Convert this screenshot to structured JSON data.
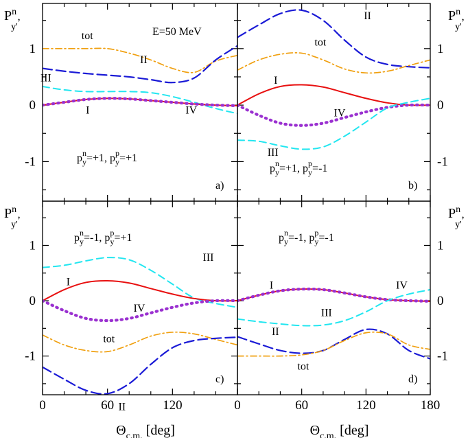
{
  "figure": {
    "x_axis_title": {
      "main": "Θ",
      "sub": "c.m.",
      "unit": " [deg]"
    },
    "y_axis_label": {
      "main": "P",
      "sup": "n",
      "sub": "y'",
      "suffix": ","
    },
    "x_ticks": [
      "0",
      "60",
      "120",
      "180"
    ],
    "y_ticks": [
      "-1",
      "0",
      "1"
    ],
    "energy_label": "E=50 MeV",
    "colors": {
      "tot": "#f0a010",
      "II": "#1a1ad6",
      "III": "#22e6f0",
      "I": "#e81010",
      "IV": "#9a30d0"
    }
  },
  "chart_data": [
    {
      "type": "line",
      "panel": "a",
      "tag": "a)",
      "condition": {
        "n_value": "=+1,  ",
        "p_value": "=+1"
      },
      "xlim": [
        0,
        180
      ],
      "ylim": [
        -1.7,
        1.8
      ],
      "x": [
        0,
        20,
        40,
        60,
        80,
        100,
        120,
        140,
        160,
        180
      ],
      "series": [
        {
          "name": "tot",
          "label": "tot",
          "values": [
            1.0,
            1.0,
            1.0,
            1.0,
            0.92,
            0.8,
            0.65,
            0.58,
            0.78,
            0.88
          ]
        },
        {
          "name": "II",
          "label": "II",
          "values": [
            0.65,
            0.6,
            0.56,
            0.53,
            0.5,
            0.45,
            0.4,
            0.48,
            0.8,
            1.05
          ]
        },
        {
          "name": "III",
          "label": "III",
          "values": [
            0.33,
            0.27,
            0.24,
            0.24,
            0.24,
            0.22,
            0.15,
            0.05,
            -0.06,
            -0.15
          ]
        },
        {
          "name": "I",
          "label": "I",
          "values": [
            0.0,
            0.05,
            0.1,
            0.12,
            0.11,
            0.08,
            0.05,
            0.02,
            0.0,
            -0.01
          ]
        },
        {
          "name": "IV",
          "label": "IV",
          "values": [
            0.0,
            0.05,
            0.1,
            0.12,
            0.11,
            0.08,
            0.05,
            0.02,
            0.0,
            -0.01
          ]
        }
      ]
    },
    {
      "type": "line",
      "panel": "b",
      "tag": "b)",
      "condition": {
        "n_value": "=+1,  ",
        "p_value": "=-1"
      },
      "xlim": [
        0,
        180
      ],
      "ylim": [
        -1.7,
        1.8
      ],
      "x": [
        0,
        20,
        40,
        60,
        80,
        100,
        120,
        140,
        160,
        180
      ],
      "series": [
        {
          "name": "II",
          "label": "II",
          "values": [
            1.2,
            1.42,
            1.62,
            1.68,
            1.5,
            1.15,
            0.85,
            0.72,
            0.68,
            0.66
          ]
        },
        {
          "name": "tot",
          "label": "tot",
          "values": [
            0.62,
            0.8,
            0.9,
            0.92,
            0.8,
            0.64,
            0.57,
            0.6,
            0.7,
            0.8
          ]
        },
        {
          "name": "I",
          "label": "I",
          "values": [
            0.0,
            0.2,
            0.33,
            0.36,
            0.32,
            0.22,
            0.12,
            0.04,
            0.0,
            0.0
          ]
        },
        {
          "name": "IV",
          "label": "IV",
          "values": [
            0.0,
            -0.18,
            -0.32,
            -0.36,
            -0.32,
            -0.22,
            -0.12,
            -0.04,
            0.0,
            0.0
          ]
        },
        {
          "name": "III",
          "label": "III",
          "values": [
            -0.62,
            -0.64,
            -0.72,
            -0.78,
            -0.74,
            -0.55,
            -0.3,
            -0.05,
            0.05,
            0.12
          ]
        }
      ]
    },
    {
      "type": "line",
      "panel": "c",
      "tag": "c)",
      "condition": {
        "n_value": "=-1,  ",
        "p_value": "=+1"
      },
      "xlim": [
        0,
        180
      ],
      "ylim": [
        -1.7,
        1.8
      ],
      "x": [
        0,
        20,
        40,
        60,
        80,
        100,
        120,
        140,
        160,
        180
      ],
      "series": [
        {
          "name": "III",
          "label": "III",
          "values": [
            0.6,
            0.64,
            0.72,
            0.78,
            0.74,
            0.55,
            0.3,
            0.05,
            -0.05,
            -0.12
          ]
        },
        {
          "name": "I",
          "label": "I",
          "values": [
            0.0,
            0.2,
            0.33,
            0.36,
            0.32,
            0.22,
            0.12,
            0.04,
            0.0,
            0.0
          ]
        },
        {
          "name": "IV",
          "label": "IV",
          "values": [
            0.0,
            -0.18,
            -0.32,
            -0.36,
            -0.32,
            -0.22,
            -0.12,
            -0.04,
            0.0,
            0.0
          ]
        },
        {
          "name": "tot",
          "label": "tot",
          "values": [
            -0.62,
            -0.8,
            -0.9,
            -0.92,
            -0.8,
            -0.64,
            -0.57,
            -0.6,
            -0.7,
            -0.8
          ]
        },
        {
          "name": "II",
          "label": "II",
          "values": [
            -1.2,
            -1.42,
            -1.62,
            -1.68,
            -1.5,
            -1.15,
            -0.85,
            -0.72,
            -0.68,
            -0.66
          ]
        }
      ]
    },
    {
      "type": "line",
      "panel": "d",
      "tag": "d)",
      "condition": {
        "n_value": "=-1,  ",
        "p_value": "=-1"
      },
      "xlim": [
        0,
        180
      ],
      "ylim": [
        -1.7,
        1.8
      ],
      "x": [
        0,
        20,
        40,
        60,
        80,
        100,
        120,
        140,
        160,
        180
      ],
      "series": [
        {
          "name": "I",
          "label": "I",
          "values": [
            0.0,
            0.1,
            0.18,
            0.21,
            0.2,
            0.14,
            0.07,
            0.02,
            0.0,
            -0.01
          ]
        },
        {
          "name": "IV",
          "label": "IV",
          "values": [
            0.0,
            0.1,
            0.18,
            0.21,
            0.2,
            0.14,
            0.07,
            0.02,
            0.0,
            -0.01
          ]
        },
        {
          "name": "III",
          "label": "III",
          "values": [
            -0.33,
            -0.38,
            -0.42,
            -0.45,
            -0.44,
            -0.36,
            -0.2,
            0.0,
            0.12,
            0.2
          ]
        },
        {
          "name": "II",
          "label": "II",
          "values": [
            -0.65,
            -0.78,
            -0.9,
            -0.95,
            -0.9,
            -0.7,
            -0.52,
            -0.6,
            -0.9,
            -1.05
          ]
        },
        {
          "name": "tot",
          "label": "tot",
          "values": [
            -1.0,
            -1.0,
            -1.0,
            -0.98,
            -0.9,
            -0.72,
            -0.58,
            -0.6,
            -0.8,
            -0.88
          ]
        }
      ]
    }
  ]
}
